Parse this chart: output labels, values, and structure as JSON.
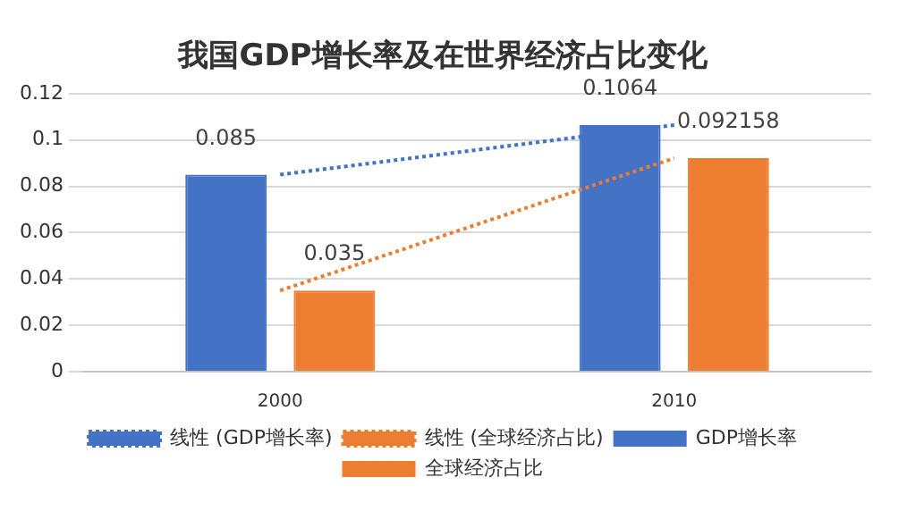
{
  "chart_data": {
    "type": "bar",
    "title": "我国GDP增长率及在世界经济占比变化",
    "categories": [
      "2000",
      "2010"
    ],
    "series": [
      {
        "name": "GDP增长率",
        "color": "#4472c4",
        "values": [
          0.085,
          0.1064
        ],
        "value_labels": [
          "0.085",
          "0.1064"
        ]
      },
      {
        "name": "全球经济占比",
        "color": "#ed7d31",
        "values": [
          0.035,
          0.092158
        ],
        "value_labels": [
          "0.035",
          "0.092158"
        ]
      },
      {
        "name": "线性 (GDP增长率)",
        "type": "line",
        "color": "#4472c4",
        "values": [
          0.085,
          0.1064
        ],
        "line_style": "dotted",
        "marker": "none"
      },
      {
        "name": "线性 (全球经济占比)",
        "type": "line",
        "color": "#ed7d31",
        "values": [
          0.035,
          0.092158
        ],
        "line_style": "dotted",
        "marker": "none"
      }
    ],
    "ylim": [
      0,
      0.12
    ],
    "yticks": [
      0,
      0.02,
      0.04,
      0.06,
      0.08,
      0.1,
      0.12
    ],
    "grid": "y",
    "legend": "bottom"
  }
}
